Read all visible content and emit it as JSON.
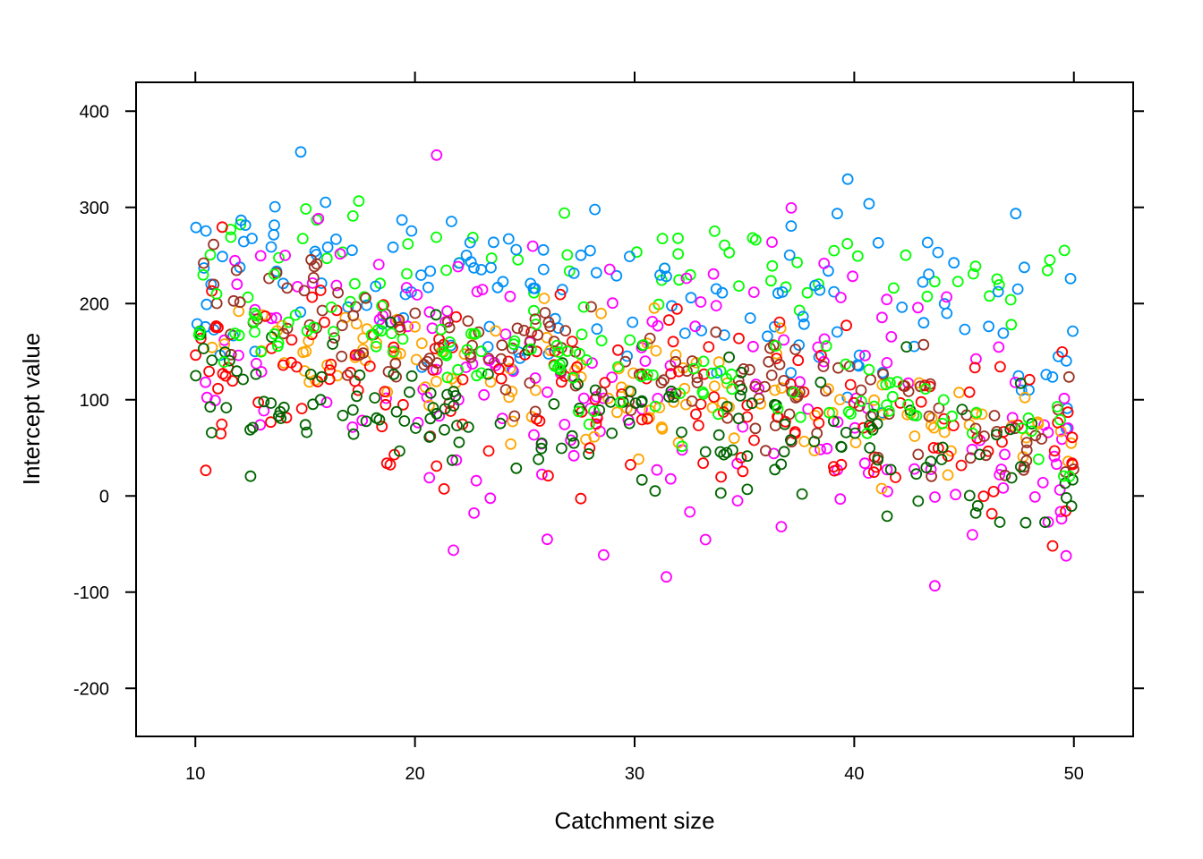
{
  "chart_data": {
    "type": "scatter",
    "title": "",
    "xlabel": "Catchment size",
    "ylabel": "Intercept value",
    "xlim": [
      7.3,
      52.7
    ],
    "ylim": [
      -250,
      430
    ],
    "xticks": [
      10,
      20,
      30,
      40,
      50
    ],
    "yticks": [
      -200,
      -100,
      0,
      100,
      200,
      300,
      400
    ],
    "grid": false,
    "legend": "none",
    "marker": "open-circle",
    "series": [
      {
        "color": "#00ff00",
        "base": 265,
        "slope": -0.9,
        "spread": 48,
        "points": 70
      },
      {
        "color": "#008ff8",
        "base": 230,
        "slope": -1.1,
        "spread": 95,
        "points": 150
      },
      {
        "color": "#ff00ff",
        "base": 160,
        "slope": -2.6,
        "spread": 150,
        "points": 180
      },
      {
        "color": "#ffa500",
        "base": 175,
        "slope": -3.0,
        "spread": 55,
        "points": 130
      },
      {
        "color": "#ff0000",
        "base": 150,
        "slope": -2.3,
        "spread": 95,
        "points": 170
      },
      {
        "color": "#9a3324",
        "base": 200,
        "slope": -3.6,
        "spread": 55,
        "points": 160
      },
      {
        "color": "#006400",
        "base": 130,
        "slope": -2.6,
        "spread": 70,
        "points": 160
      },
      {
        "color": "#00ff00",
        "base": 190,
        "slope": -3.0,
        "spread": 40,
        "points": 120
      }
    ]
  }
}
